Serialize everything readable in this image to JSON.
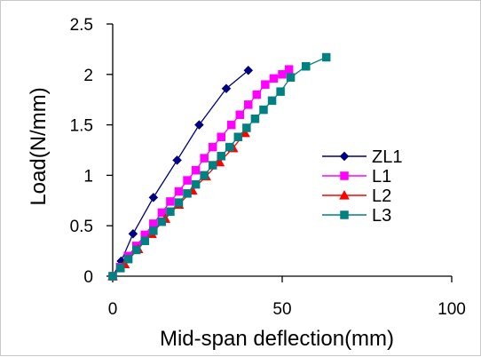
{
  "chart_data": {
    "type": "line",
    "title": "",
    "xlabel": "Mid-span deflection(mm)",
    "ylabel": "Load(N/mm)",
    "xlim": [
      0,
      100
    ],
    "ylim": [
      0,
      2.5
    ],
    "x_ticks": [
      "0",
      "50",
      "100"
    ],
    "y_ticks": [
      "0",
      "0.5",
      "1",
      "1.5",
      "2",
      "2.5"
    ],
    "grid": false,
    "legend_position": "right",
    "series": [
      {
        "name": "ZL1",
        "color": "#000080",
        "marker": "diamond",
        "x": [
          0,
          2.5,
          6,
          12,
          19,
          25.5,
          33.5,
          40
        ],
        "y": [
          0,
          0.15,
          0.42,
          0.78,
          1.15,
          1.5,
          1.86,
          2.04
        ]
      },
      {
        "name": "L1",
        "color": "#ff00ff",
        "marker": "square",
        "x": [
          0,
          2.2,
          4.5,
          7,
          9.5,
          12,
          14.5,
          17,
          19.5,
          22,
          24.5,
          27,
          29.5,
          32,
          35,
          37.5,
          40,
          42.5,
          45,
          47.5,
          50,
          52
        ],
        "y": [
          0,
          0.09,
          0.2,
          0.3,
          0.41,
          0.52,
          0.63,
          0.74,
          0.84,
          0.95,
          1.05,
          1.17,
          1.28,
          1.38,
          1.5,
          1.6,
          1.7,
          1.8,
          1.9,
          1.96,
          2.0,
          2.05
        ]
      },
      {
        "name": "L2",
        "color": "#ff0000",
        "marker": "triangle",
        "x": [
          0,
          3.5,
          7.5,
          11.5,
          15.5,
          19.5,
          23.5,
          27.5,
          31.5,
          35.5,
          39
        ],
        "y": [
          0,
          0.12,
          0.27,
          0.42,
          0.57,
          0.71,
          0.85,
          0.99,
          1.13,
          1.27,
          1.42
        ]
      },
      {
        "name": "L3",
        "color": "#008080",
        "marker": "square",
        "x": [
          0,
          2.3,
          4.6,
          7,
          9.5,
          12,
          14.5,
          17,
          19.5,
          22,
          24.5,
          27,
          29.5,
          32,
          34.5,
          37,
          39.5,
          42,
          44.5,
          47,
          49.5,
          52.5,
          57,
          63
        ],
        "y": [
          0,
          0.08,
          0.17,
          0.26,
          0.35,
          0.45,
          0.54,
          0.64,
          0.73,
          0.82,
          0.91,
          1.0,
          1.1,
          1.19,
          1.28,
          1.38,
          1.47,
          1.56,
          1.65,
          1.74,
          1.83,
          1.97,
          2.08,
          2.17
        ]
      }
    ]
  }
}
